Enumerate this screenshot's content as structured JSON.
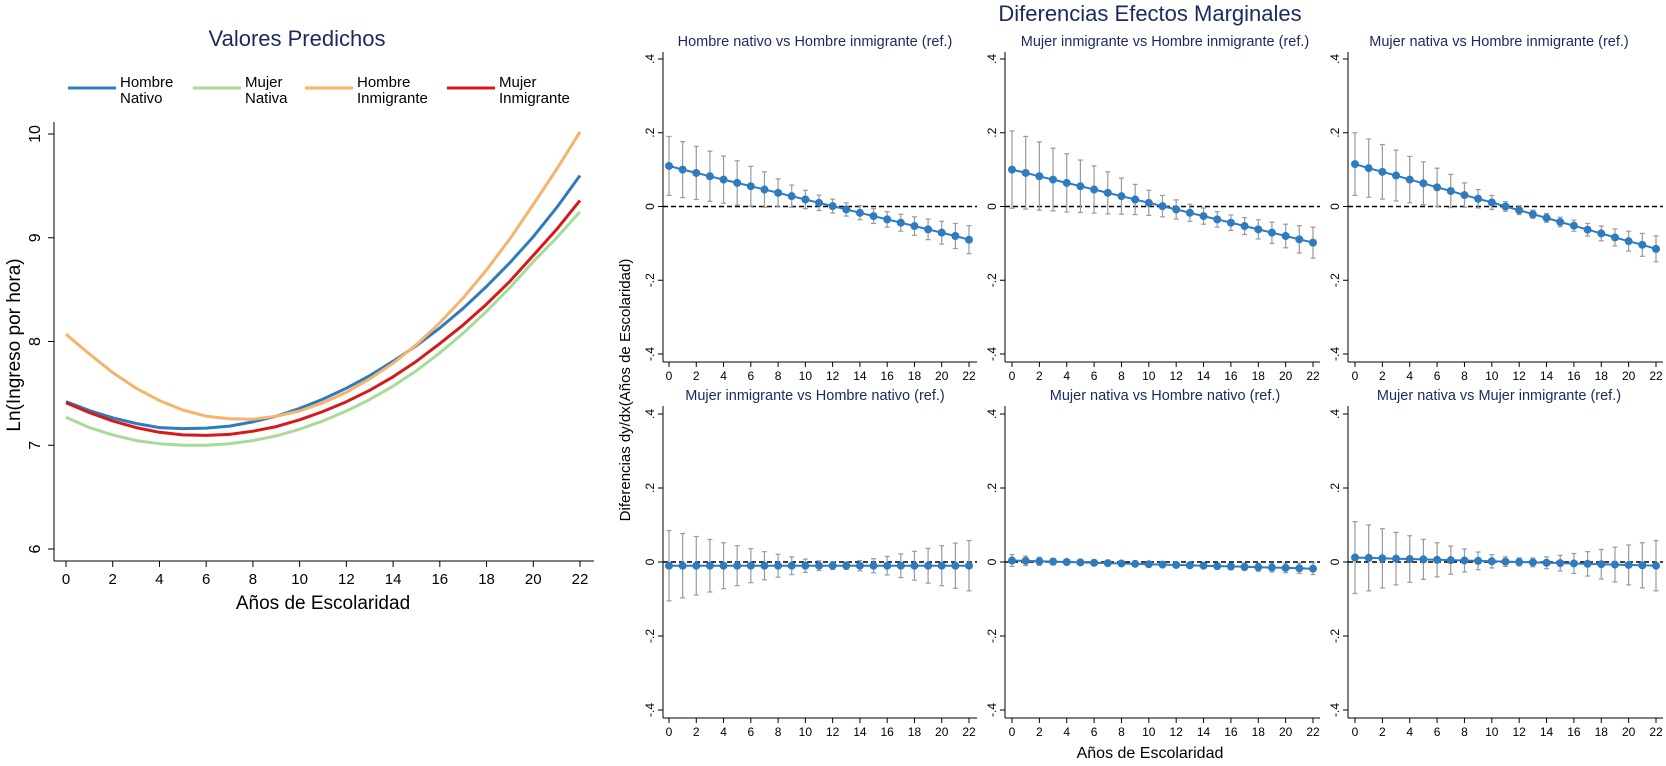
{
  "left_panel": {
    "title": "Valores Predichos",
    "legend": [
      {
        "label_lines": [
          "Hombre",
          "Nativo"
        ],
        "color": "#2f7bbf"
      },
      {
        "label_lines": [
          "Mujer",
          "Nativa"
        ],
        "color": "#a8db9a"
      },
      {
        "label_lines": [
          "Hombre",
          "Inmigrante"
        ],
        "color": "#f7b36a"
      },
      {
        "label_lines": [
          "Mujer",
          "Inmigrante"
        ],
        "color": "#d7191c"
      }
    ]
  },
  "right_panel": {
    "title": "Diferencias Efectos Marginales",
    "ylabel": "Diferencias dy/dx(Años de Escolaridad)",
    "xlabel": "Años de Escolaridad"
  },
  "chart_data": [
    {
      "type": "line",
      "title": "Valores Predichos",
      "xlabel": "Años de Escolaridad",
      "ylabel": "Ln(Ingreso por hora)",
      "xlim": [
        0,
        22
      ],
      "ylim": [
        6,
        10
      ],
      "xticks": [
        0,
        2,
        4,
        6,
        8,
        10,
        12,
        14,
        16,
        18,
        20,
        22
      ],
      "yticks": [
        6,
        7,
        8,
        9,
        10
      ],
      "grid": false,
      "legend_position": "top",
      "x": [
        0,
        1,
        2,
        3,
        4,
        5,
        6,
        7,
        8,
        9,
        10,
        11,
        12,
        13,
        14,
        15,
        16,
        17,
        18,
        19,
        20,
        21,
        22
      ],
      "series": [
        {
          "name": "Hombre Nativo",
          "color": "#2f7bbf",
          "values": [
            7.42,
            7.335,
            7.265,
            7.21,
            7.17,
            7.16,
            7.165,
            7.185,
            7.225,
            7.28,
            7.355,
            7.445,
            7.55,
            7.67,
            7.81,
            7.96,
            8.13,
            8.32,
            8.53,
            8.76,
            9.01,
            9.29,
            9.6
          ]
        },
        {
          "name": "Mujer Nativa",
          "color": "#a8db9a",
          "values": [
            7.27,
            7.17,
            7.1,
            7.045,
            7.015,
            7.0,
            7.0,
            7.015,
            7.045,
            7.09,
            7.155,
            7.235,
            7.33,
            7.44,
            7.57,
            7.72,
            7.89,
            8.08,
            8.29,
            8.52,
            8.77,
            9.0,
            9.25
          ]
        },
        {
          "name": "Hombre Inmigrante",
          "color": "#f7b36a",
          "values": [
            8.07,
            7.88,
            7.7,
            7.55,
            7.43,
            7.34,
            7.28,
            7.255,
            7.25,
            7.28,
            7.33,
            7.41,
            7.51,
            7.64,
            7.79,
            7.97,
            8.18,
            8.42,
            8.69,
            8.99,
            9.32,
            9.66,
            10.02
          ]
        },
        {
          "name": "Mujer Inmigrante",
          "color": "#d7191c",
          "values": [
            7.41,
            7.315,
            7.235,
            7.17,
            7.125,
            7.1,
            7.095,
            7.105,
            7.135,
            7.18,
            7.245,
            7.325,
            7.42,
            7.53,
            7.66,
            7.81,
            7.98,
            8.16,
            8.36,
            8.58,
            8.83,
            9.08,
            9.36
          ]
        }
      ]
    },
    {
      "type": "scatter",
      "title": "Hombre nativo vs Hombre inmigrante (ref.)",
      "xlim": [
        0,
        22
      ],
      "ylim": [
        -0.4,
        0.4
      ],
      "reference_line": 0,
      "xticks": [
        0,
        2,
        4,
        6,
        8,
        10,
        12,
        14,
        16,
        18,
        20,
        22
      ],
      "yticks": [
        -0.4,
        -0.2,
        0,
        0.2,
        0.4
      ],
      "ytick_labels": [
        "-.4",
        "-.2",
        "0",
        ".2",
        ".4"
      ],
      "x": [
        0,
        1,
        2,
        3,
        4,
        5,
        6,
        7,
        8,
        9,
        10,
        11,
        12,
        13,
        14,
        15,
        16,
        17,
        18,
        19,
        20,
        21,
        22
      ],
      "values": [
        0.11,
        0.1,
        0.091,
        0.082,
        0.073,
        0.064,
        0.055,
        0.046,
        0.037,
        0.028,
        0.019,
        0.01,
        0.001,
        -0.008,
        -0.017,
        -0.026,
        -0.035,
        -0.044,
        -0.053,
        -0.062,
        -0.071,
        -0.08,
        -0.09
      ],
      "ci_low": [
        0.03,
        0.024,
        0.019,
        0.014,
        0.009,
        0.004,
        0.001,
        -0.002,
        -0.001,
        -0.002,
        -0.006,
        -0.011,
        -0.018,
        -0.026,
        -0.036,
        -0.046,
        -0.056,
        -0.067,
        -0.078,
        -0.09,
        -0.102,
        -0.114,
        -0.128
      ],
      "ci_high": [
        0.19,
        0.176,
        0.163,
        0.15,
        0.137,
        0.124,
        0.109,
        0.094,
        0.075,
        0.058,
        0.044,
        0.031,
        0.02,
        0.01,
        0.002,
        -0.006,
        -0.014,
        -0.021,
        -0.028,
        -0.034,
        -0.04,
        -0.046,
        -0.052
      ]
    },
    {
      "type": "scatter",
      "title": "Mujer inmigrante vs Hombre inmigrante (ref.)",
      "xlim": [
        0,
        22
      ],
      "ylim": [
        -0.4,
        0.4
      ],
      "reference_line": 0,
      "xticks": [
        0,
        2,
        4,
        6,
        8,
        10,
        12,
        14,
        16,
        18,
        20,
        22
      ],
      "yticks": [
        -0.4,
        -0.2,
        0,
        0.2,
        0.4
      ],
      "ytick_labels": [
        "-.4",
        "-.2",
        "0",
        ".2",
        ".4"
      ],
      "x": [
        0,
        1,
        2,
        3,
        4,
        5,
        6,
        7,
        8,
        9,
        10,
        11,
        12,
        13,
        14,
        15,
        16,
        17,
        18,
        19,
        20,
        21,
        22
      ],
      "values": [
        0.1,
        0.091,
        0.082,
        0.073,
        0.064,
        0.055,
        0.046,
        0.037,
        0.028,
        0.019,
        0.01,
        0.001,
        -0.008,
        -0.017,
        -0.026,
        -0.035,
        -0.044,
        -0.053,
        -0.062,
        -0.071,
        -0.08,
        -0.089,
        -0.098
      ],
      "ci_low": [
        -0.005,
        -0.007,
        -0.01,
        -0.012,
        -0.015,
        -0.016,
        -0.018,
        -0.02,
        -0.021,
        -0.022,
        -0.024,
        -0.028,
        -0.034,
        -0.04,
        -0.048,
        -0.056,
        -0.065,
        -0.076,
        -0.088,
        -0.1,
        -0.112,
        -0.126,
        -0.14
      ],
      "ci_high": [
        0.205,
        0.19,
        0.175,
        0.158,
        0.143,
        0.126,
        0.11,
        0.094,
        0.077,
        0.06,
        0.044,
        0.03,
        0.018,
        0.006,
        -0.004,
        -0.014,
        -0.023,
        -0.03,
        -0.036,
        -0.042,
        -0.048,
        -0.052,
        -0.056
      ]
    },
    {
      "type": "scatter",
      "title": "Mujer nativa vs Hombre inmigrante (ref.)",
      "xlim": [
        0,
        22
      ],
      "ylim": [
        -0.4,
        0.4
      ],
      "reference_line": 0,
      "xticks": [
        0,
        2,
        4,
        6,
        8,
        10,
        12,
        14,
        16,
        18,
        20,
        22
      ],
      "yticks": [
        -0.4,
        -0.2,
        0,
        0.2,
        0.4
      ],
      "ytick_labels": [
        "-.4",
        "-.2",
        "0",
        ".2",
        ".4"
      ],
      "x": [
        0,
        1,
        2,
        3,
        4,
        5,
        6,
        7,
        8,
        9,
        10,
        11,
        12,
        13,
        14,
        15,
        16,
        17,
        18,
        19,
        20,
        21,
        22
      ],
      "values": [
        0.115,
        0.104,
        0.094,
        0.084,
        0.073,
        0.063,
        0.052,
        0.042,
        0.031,
        0.021,
        0.011,
        0.0,
        -0.01,
        -0.021,
        -0.031,
        -0.042,
        -0.052,
        -0.063,
        -0.073,
        -0.084,
        -0.094,
        -0.104,
        -0.115
      ],
      "ci_low": [
        0.03,
        0.025,
        0.02,
        0.015,
        0.01,
        0.005,
        0.0,
        -0.003,
        -0.002,
        -0.004,
        -0.008,
        -0.013,
        -0.022,
        -0.032,
        -0.043,
        -0.055,
        -0.067,
        -0.08,
        -0.093,
        -0.107,
        -0.121,
        -0.135,
        -0.15
      ],
      "ci_high": [
        0.2,
        0.183,
        0.168,
        0.153,
        0.136,
        0.121,
        0.104,
        0.087,
        0.064,
        0.046,
        0.03,
        0.013,
        0.002,
        -0.01,
        -0.019,
        -0.029,
        -0.037,
        -0.046,
        -0.053,
        -0.061,
        -0.067,
        -0.073,
        -0.08
      ]
    },
    {
      "type": "scatter",
      "title": "Mujer inmigrante vs Hombre nativo (ref.)",
      "xlim": [
        0,
        22
      ],
      "ylim": [
        -0.4,
        0.4
      ],
      "reference_line": 0,
      "xticks": [
        0,
        2,
        4,
        6,
        8,
        10,
        12,
        14,
        16,
        18,
        20,
        22
      ],
      "yticks": [
        -0.4,
        -0.2,
        0,
        0.2,
        0.4
      ],
      "ytick_labels": [
        "-.4",
        "-.2",
        "0",
        ".2",
        ".4"
      ],
      "x": [
        0,
        1,
        2,
        3,
        4,
        5,
        6,
        7,
        8,
        9,
        10,
        11,
        12,
        13,
        14,
        15,
        16,
        17,
        18,
        19,
        20,
        21,
        22
      ],
      "values": [
        -0.01,
        -0.01,
        -0.01,
        -0.01,
        -0.01,
        -0.01,
        -0.01,
        -0.01,
        -0.01,
        -0.01,
        -0.01,
        -0.01,
        -0.01,
        -0.01,
        -0.01,
        -0.01,
        -0.01,
        -0.01,
        -0.01,
        -0.01,
        -0.01,
        -0.01,
        -0.01
      ],
      "ci_low": [
        -0.105,
        -0.097,
        -0.089,
        -0.081,
        -0.072,
        -0.064,
        -0.056,
        -0.048,
        -0.041,
        -0.034,
        -0.028,
        -0.023,
        -0.02,
        -0.02,
        -0.024,
        -0.029,
        -0.035,
        -0.042,
        -0.049,
        -0.057,
        -0.064,
        -0.071,
        -0.078
      ],
      "ci_high": [
        0.085,
        0.077,
        0.069,
        0.061,
        0.052,
        0.044,
        0.036,
        0.028,
        0.021,
        0.014,
        0.008,
        0.003,
        0.0,
        0.0,
        0.004,
        0.009,
        0.015,
        0.022,
        0.029,
        0.037,
        0.044,
        0.051,
        0.058
      ]
    },
    {
      "type": "scatter",
      "title": "Mujer nativa vs Hombre nativo (ref.)",
      "xlim": [
        0,
        22
      ],
      "ylim": [
        -0.4,
        0.4
      ],
      "reference_line": 0,
      "xticks": [
        0,
        2,
        4,
        6,
        8,
        10,
        12,
        14,
        16,
        18,
        20,
        22
      ],
      "yticks": [
        -0.4,
        -0.2,
        0,
        0.2,
        0.4
      ],
      "ytick_labels": [
        "-.4",
        "-.2",
        "0",
        ".2",
        ".4"
      ],
      "x": [
        0,
        1,
        2,
        3,
        4,
        5,
        6,
        7,
        8,
        9,
        10,
        11,
        12,
        13,
        14,
        15,
        16,
        17,
        18,
        19,
        20,
        21,
        22
      ],
      "values": [
        0.004,
        0.003,
        0.002,
        0.001,
        0.0,
        -0.001,
        -0.002,
        -0.003,
        -0.004,
        -0.005,
        -0.006,
        -0.007,
        -0.008,
        -0.009,
        -0.01,
        -0.011,
        -0.012,
        -0.013,
        -0.014,
        -0.015,
        -0.016,
        -0.017,
        -0.018
      ],
      "ci_low": [
        -0.012,
        -0.01,
        -0.009,
        -0.008,
        -0.007,
        -0.007,
        -0.007,
        -0.008,
        -0.009,
        -0.01,
        -0.011,
        -0.012,
        -0.013,
        -0.015,
        -0.017,
        -0.019,
        -0.021,
        -0.023,
        -0.025,
        -0.027,
        -0.029,
        -0.031,
        -0.034
      ],
      "ci_high": [
        0.02,
        0.016,
        0.013,
        0.01,
        0.007,
        0.005,
        0.003,
        0.002,
        0.001,
        0.0,
        -0.001,
        -0.002,
        -0.003,
        -0.003,
        -0.003,
        -0.003,
        -0.003,
        -0.003,
        -0.003,
        -0.003,
        -0.003,
        -0.003,
        -0.002
      ]
    },
    {
      "type": "scatter",
      "title": "Mujer nativa vs Mujer inmigrante (ref.)",
      "xlim": [
        0,
        22
      ],
      "ylim": [
        -0.4,
        0.4
      ],
      "reference_line": 0,
      "xticks": [
        0,
        2,
        4,
        6,
        8,
        10,
        12,
        14,
        16,
        18,
        20,
        22
      ],
      "yticks": [
        -0.4,
        -0.2,
        0,
        0.2,
        0.4
      ],
      "ytick_labels": [
        "-.4",
        "-.2",
        "0",
        ".2",
        ".4"
      ],
      "x": [
        0,
        1,
        2,
        3,
        4,
        5,
        6,
        7,
        8,
        9,
        10,
        11,
        12,
        13,
        14,
        15,
        16,
        17,
        18,
        19,
        20,
        21,
        22
      ],
      "values": [
        0.012,
        0.011,
        0.01,
        0.009,
        0.008,
        0.007,
        0.006,
        0.005,
        0.004,
        0.003,
        0.002,
        0.001,
        0.0,
        -0.001,
        -0.002,
        -0.003,
        -0.004,
        -0.005,
        -0.006,
        -0.007,
        -0.008,
        -0.009,
        -0.01
      ],
      "ci_low": [
        -0.085,
        -0.078,
        -0.07,
        -0.062,
        -0.055,
        -0.047,
        -0.04,
        -0.033,
        -0.027,
        -0.021,
        -0.016,
        -0.012,
        -0.011,
        -0.013,
        -0.018,
        -0.024,
        -0.031,
        -0.038,
        -0.046,
        -0.054,
        -0.062,
        -0.07,
        -0.078
      ],
      "ci_high": [
        0.109,
        0.1,
        0.09,
        0.08,
        0.071,
        0.061,
        0.052,
        0.043,
        0.035,
        0.027,
        0.02,
        0.014,
        0.011,
        0.011,
        0.014,
        0.018,
        0.023,
        0.028,
        0.034,
        0.04,
        0.046,
        0.052,
        0.058
      ]
    }
  ]
}
